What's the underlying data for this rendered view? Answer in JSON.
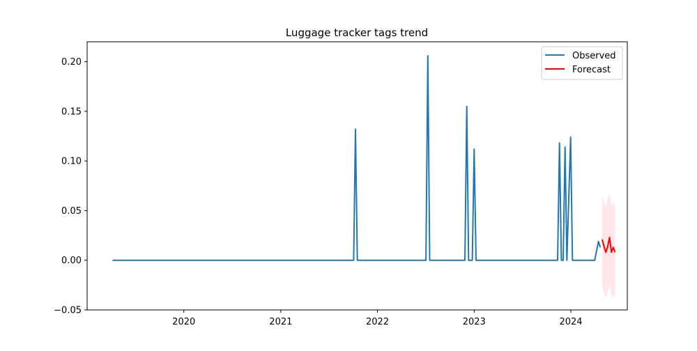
{
  "chart_data": {
    "type": "line",
    "title": "Luggage tracker tags trend",
    "xlabel": "",
    "ylabel": "",
    "xlim": [
      "2019-01-01",
      "2024-08-01"
    ],
    "ylim": [
      -0.05,
      0.22
    ],
    "x_ticks": [
      "2020",
      "2021",
      "2022",
      "2023",
      "2024"
    ],
    "y_ticks": [
      "−0.05",
      "0.00",
      "0.05",
      "0.10",
      "0.15",
      "0.20"
    ],
    "grid": false,
    "legend_position": "top-right",
    "legend": [
      "Observed",
      "Forecast"
    ],
    "colors": {
      "observed": "#1f77b4",
      "forecast": "#ff0000",
      "band": "#ffc0cb"
    },
    "observed": {
      "name": "Observed",
      "points": [
        [
          "2019-04-07",
          0
        ],
        [
          "2021-10-03",
          0
        ],
        [
          "2021-10-10",
          0.132
        ],
        [
          "2021-10-17",
          0
        ],
        [
          "2022-07-03",
          0
        ],
        [
          "2022-07-10",
          0.206
        ],
        [
          "2022-07-17",
          0
        ],
        [
          "2022-11-27",
          0
        ],
        [
          "2022-12-04",
          0.155
        ],
        [
          "2022-12-11",
          0
        ],
        [
          "2022-12-25",
          0
        ],
        [
          "2023-01-01",
          0.112
        ],
        [
          "2023-01-08",
          0
        ],
        [
          "2023-11-12",
          0
        ],
        [
          "2023-11-19",
          0.118
        ],
        [
          "2023-11-26",
          0
        ],
        [
          "2023-12-03",
          0
        ],
        [
          "2023-12-10",
          0.114
        ],
        [
          "2023-12-17",
          0
        ],
        [
          "2023-12-31",
          0.124
        ],
        [
          "2024-01-07",
          0
        ],
        [
          "2024-03-31",
          0
        ],
        [
          "2024-04-14",
          0.019
        ],
        [
          "2024-04-21",
          0.013
        ]
      ]
    },
    "forecast": {
      "name": "Forecast",
      "points": [
        [
          "2024-04-28",
          0.021
        ],
        [
          "2024-05-05",
          0.014
        ],
        [
          "2024-05-12",
          0.008
        ],
        [
          "2024-05-19",
          0.014
        ],
        [
          "2024-05-26",
          0.023
        ],
        [
          "2024-06-02",
          0.008
        ],
        [
          "2024-06-09",
          0.013
        ],
        [
          "2024-06-16",
          0.008
        ]
      ],
      "upper": [
        0.066,
        0.058,
        0.053,
        0.062,
        0.068,
        0.054,
        0.058,
        0.055
      ],
      "lower": [
        -0.023,
        -0.033,
        -0.038,
        -0.032,
        -0.024,
        -0.038,
        -0.034,
        -0.039
      ]
    }
  }
}
